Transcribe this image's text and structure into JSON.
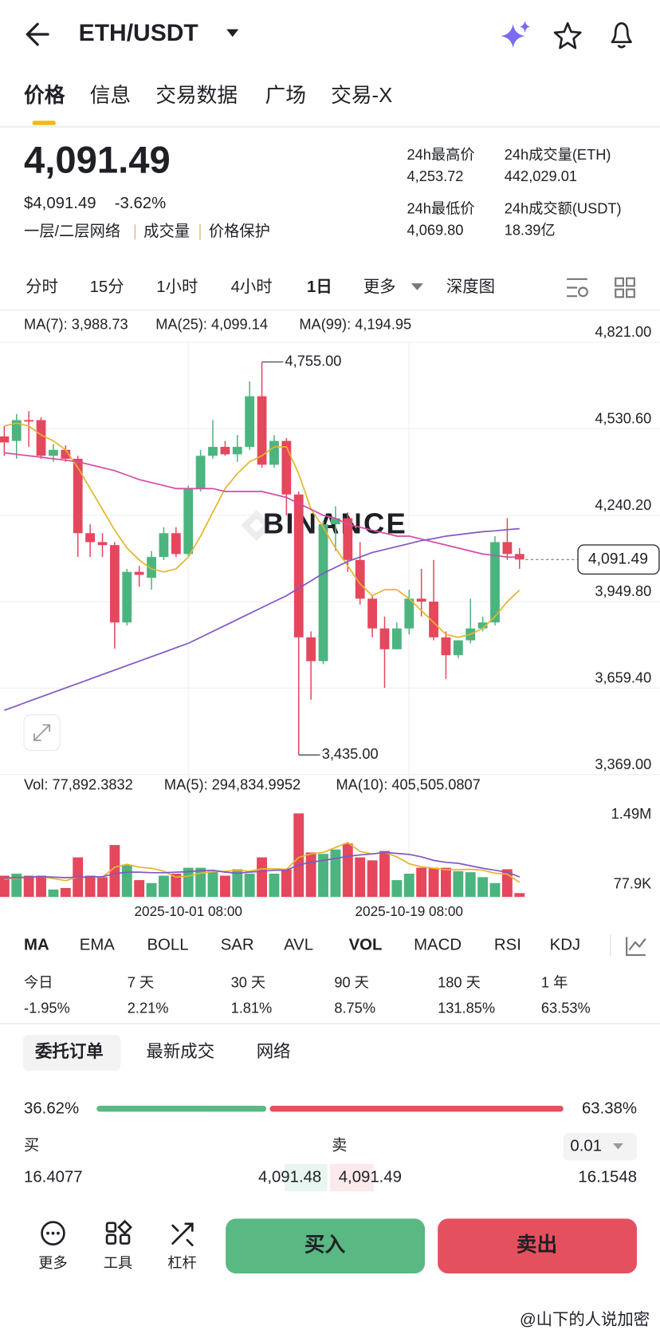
{
  "header": {
    "title": "ETH/USDT"
  },
  "tabs": {
    "items": [
      "价格",
      "信息",
      "交易数据",
      "广场",
      "交易-X"
    ],
    "active": 0
  },
  "ticker": {
    "price": "4,091.49",
    "usd_price": "$4,091.49",
    "change": "-3.62%",
    "tags": [
      "一层/二层网络",
      "成交量",
      "价格保护"
    ],
    "stats": [
      {
        "label": "24h最高价",
        "value": "4,253.72"
      },
      {
        "label": "24h成交量(ETH)",
        "value": "442,029.01"
      },
      {
        "label": "24h最低价",
        "value": "4,069.80"
      },
      {
        "label": "24h成交额(USDT)",
        "value": "18.39亿"
      }
    ]
  },
  "intervals": {
    "items": [
      "分时",
      "15分",
      "1小时",
      "4小时",
      "1日",
      "更多",
      "深度图"
    ],
    "active": 4
  },
  "chart_data": [
    {
      "type": "candlestick",
      "watermark": "BINANCE",
      "categories": [
        null,
        null,
        null,
        null,
        null,
        null,
        null,
        null,
        null,
        null,
        null,
        null,
        null,
        null,
        null,
        "2025-10-01 08:00",
        null,
        null,
        null,
        null,
        null,
        null,
        null,
        null,
        null,
        null,
        null,
        null,
        null,
        null,
        null,
        null,
        null,
        "2025-10-19 08:00",
        null,
        null,
        null,
        null,
        null,
        null,
        null,
        null,
        null
      ],
      "open": [
        4505,
        4490,
        4560,
        4560,
        4440,
        4460,
        4430,
        4180,
        4150,
        4140,
        3880,
        4050,
        4030,
        4100,
        4180,
        4110,
        4330,
        4440,
        4470,
        4445,
        4470,
        4640,
        4410,
        4490,
        4310,
        3830,
        3750,
        4210,
        4230,
        4090,
        3960,
        3860,
        3790,
        3860,
        3960,
        3950,
        3830,
        3770,
        3820,
        3860,
        3880,
        4150,
        4110
      ],
      "high": [
        4540,
        4580,
        4590,
        4570,
        4480,
        4475,
        4440,
        4210,
        4180,
        4150,
        4060,
        4070,
        4120,
        4200,
        4200,
        4340,
        4460,
        4560,
        4490,
        4510,
        4690,
        4755,
        4510,
        4500,
        4320,
        3850,
        4220,
        4270,
        4250,
        4150,
        3970,
        3900,
        3880,
        3990,
        4060,
        4090,
        3850,
        3820,
        3960,
        3900,
        4170,
        4230,
        4130
      ],
      "low": [
        4440,
        4430,
        4470,
        4430,
        4420,
        4420,
        4100,
        4100,
        4100,
        3792,
        3870,
        4000,
        3990,
        4090,
        4100,
        4100,
        4320,
        4430,
        4440,
        4420,
        4460,
        4400,
        4400,
        4240,
        3435,
        3620,
        3740,
        4120,
        4050,
        3940,
        3830,
        3660,
        3790,
        3840,
        3900,
        3820,
        3690,
        3760,
        3810,
        3850,
        3870,
        4090,
        4060
      ],
      "close": [
        4485,
        4560,
        4555,
        4440,
        4460,
        4430,
        4180,
        4150,
        4140,
        3880,
        4050,
        4040,
        4100,
        4180,
        4110,
        4330,
        4440,
        4470,
        4445,
        4470,
        4640,
        4410,
        4490,
        4310,
        3830,
        3750,
        4210,
        4230,
        4090,
        3960,
        3860,
        3790,
        3860,
        3960,
        3950,
        3830,
        3770,
        3820,
        3860,
        3880,
        4150,
        4110,
        4091.49
      ],
      "up_color": "#4cb47e",
      "down_color": "#e5475d",
      "series": [
        {
          "name": "MA(7): 3,988.73",
          "type": "line",
          "color": "#e6b52e",
          "values": [
            4540,
            4550,
            4540,
            4510,
            4490,
            4460,
            4400,
            4330,
            4260,
            4190,
            4130,
            4090,
            4060,
            4050,
            4060,
            4100,
            4170,
            4250,
            4330,
            4380,
            4420,
            4440,
            4470,
            4470,
            4380,
            4260,
            4200,
            4130,
            4070,
            4010,
            3970,
            3990,
            3990,
            3960,
            3920,
            3880,
            3840,
            3830,
            3840,
            3860,
            3900,
            3950,
            3988.73
          ]
        },
        {
          "name": "MA(25): 4,099.14",
          "type": "line",
          "color": "#d64aa7",
          "values": [
            4450,
            4445,
            4440,
            4435,
            4430,
            4425,
            4420,
            4410,
            4400,
            4390,
            4375,
            4360,
            4350,
            4340,
            4330,
            4330,
            4330,
            4330,
            4320,
            4320,
            4320,
            4320,
            4310,
            4300,
            4280,
            4260,
            4240,
            4230,
            4210,
            4200,
            4190,
            4180,
            4170,
            4170,
            4160,
            4150,
            4140,
            4130,
            4120,
            4110,
            4105,
            4100,
            4099.14
          ]
        },
        {
          "name": "MA(99): 4,194.95",
          "type": "line",
          "color": "#8158c4",
          "values": [
            3585,
            3600,
            3615,
            3630,
            3645,
            3660,
            3675,
            3690,
            3705,
            3720,
            3735,
            3750,
            3765,
            3780,
            3795,
            3810,
            3830,
            3850,
            3870,
            3890,
            3910,
            3930,
            3950,
            3970,
            3995,
            4020,
            4045,
            4065,
            4085,
            4100,
            4115,
            4125,
            4135,
            4145,
            4155,
            4162,
            4170,
            4175,
            4180,
            4185,
            4188,
            4192,
            4194.95
          ]
        }
      ],
      "ylim": [
        3369,
        4821
      ],
      "yticks": [
        {
          "value": 4821,
          "label": "4,821.00"
        },
        {
          "value": 4530.6,
          "label": "4,530.60"
        },
        {
          "value": 4240.2,
          "label": "4,240.20"
        },
        {
          "value": 3949.8,
          "label": "3,949.80"
        },
        {
          "value": 3659.4,
          "label": "3,659.40"
        },
        {
          "value": 3369,
          "label": "3,369.00"
        }
      ],
      "grid": true,
      "annotations": [
        {
          "value": 4755,
          "label": "4,755.00"
        },
        {
          "value": 3435,
          "label": "3,435.00"
        }
      ],
      "last_price": {
        "value": 4091.49,
        "label": "4,091.49"
      }
    },
    {
      "type": "bar",
      "series": [
        {
          "name": "Vol: 77,892.3832",
          "type": "bar",
          "values": [
            430000,
            470000,
            430000,
            430000,
            150000,
            180000,
            800000,
            430000,
            400000,
            1050000,
            650000,
            340000,
            280000,
            430000,
            470000,
            590000,
            590000,
            520000,
            430000,
            560000,
            470000,
            800000,
            470000,
            560000,
            1690000,
            900000,
            870000,
            960000,
            1080000,
            800000,
            740000,
            930000,
            340000,
            470000,
            590000,
            590000,
            590000,
            520000,
            500000,
            400000,
            280000,
            560000,
            77892.3832
          ]
        },
        {
          "name": "MA(5): 294,834.9952",
          "type": "line",
          "color": "#e6b52e",
          "values": [
            360000,
            380000,
            400000,
            410000,
            370000,
            330000,
            400000,
            400000,
            400000,
            600000,
            660000,
            600000,
            580000,
            520000,
            400000,
            420000,
            480000,
            510000,
            520000,
            540000,
            520000,
            570000,
            570000,
            560000,
            800000,
            870000,
            900000,
            1000000,
            1100000,
            920000,
            870000,
            900000,
            810000,
            670000,
            610000,
            580000,
            550000,
            550000,
            560000,
            540000,
            480000,
            460000,
            294834.9952
          ]
        },
        {
          "name": "MA(10): 405,505.0807",
          "type": "line",
          "color": "#8158c4",
          "values": [
            380000,
            390000,
            400000,
            410000,
            400000,
            390000,
            400000,
            400000,
            410000,
            470000,
            500000,
            500000,
            490000,
            490000,
            500000,
            510000,
            530000,
            540000,
            500000,
            480000,
            500000,
            520000,
            540000,
            540000,
            650000,
            700000,
            740000,
            780000,
            820000,
            850000,
            870000,
            900000,
            880000,
            860000,
            810000,
            740000,
            700000,
            680000,
            630000,
            580000,
            540000,
            500000,
            405505.0807
          ]
        }
      ],
      "ylim": [
        0,
        1870000
      ],
      "yticks": [
        {
          "value": 1490000,
          "label": "1.49M"
        },
        {
          "value": 77900,
          "label": "77.9K"
        }
      ],
      "grid": false
    }
  ],
  "indicators": {
    "items": [
      "MA",
      "EMA",
      "BOLL",
      "SAR",
      "AVL",
      "VOL",
      "MACD",
      "RSI",
      "KDJ"
    ],
    "active": [
      0,
      5
    ]
  },
  "performance": [
    {
      "label": "今日",
      "value": "-1.95%"
    },
    {
      "label": "7 天",
      "value": "2.21%"
    },
    {
      "label": "30 天",
      "value": "1.81%"
    },
    {
      "label": "90 天",
      "value": "8.75%"
    },
    {
      "label": "180 天",
      "value": "131.85%"
    },
    {
      "label": "1 年",
      "value": "63.53%"
    }
  ],
  "orders": {
    "tabs": [
      "委托订单",
      "最新成交",
      "网络"
    ],
    "active": 0,
    "ratio": {
      "buy": {
        "value": 36.62,
        "label": "36.62%"
      },
      "sell": {
        "value": 63.38,
        "label": "63.38%"
      }
    },
    "headers": [
      "买",
      "卖"
    ],
    "precision": "0.01",
    "rows": [
      [
        "16.4077",
        "4,091.48",
        "4,091.49",
        "16.1548"
      ]
    ]
  },
  "footer": {
    "items": [
      "更多",
      "工具",
      "杠杆"
    ],
    "buy": "买入",
    "sell": "卖出"
  },
  "watermark": "@山下的人说加密"
}
